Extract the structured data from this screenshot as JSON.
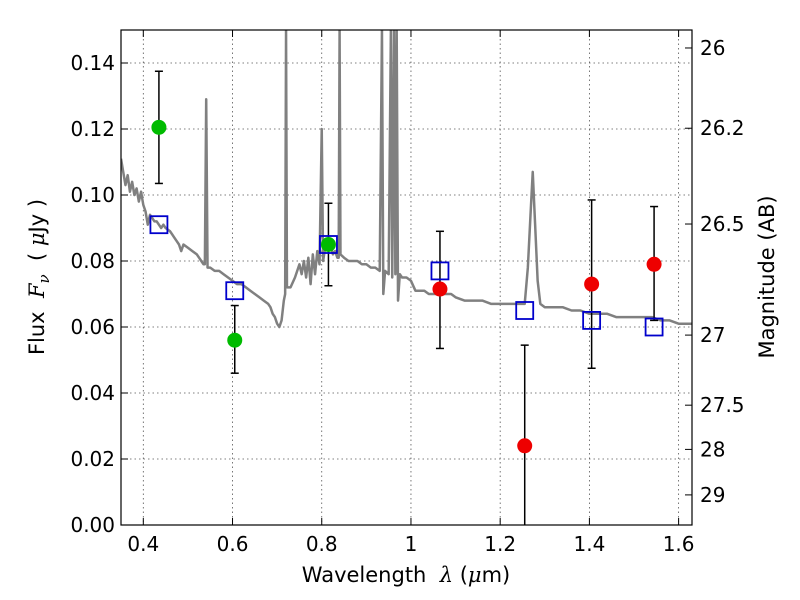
{
  "chart_data": {
    "type": "scatter",
    "title": "",
    "xlabel_parts": [
      "Wavelength  ",
      "λ",
      " (",
      "μ",
      "m)"
    ],
    "ylabel_parts": [
      "Flux  ",
      "F",
      "ν",
      "  ( ",
      "μ",
      "Jy )"
    ],
    "y2label": "Magnitude (AB)",
    "xlim": [
      0.35,
      1.63
    ],
    "ylim": [
      0.0,
      0.15
    ],
    "grid": true,
    "x_ticks": [
      {
        "v": 0.4,
        "label": "0.4"
      },
      {
        "v": 0.6,
        "label": "0.6"
      },
      {
        "v": 0.8,
        "label": "0.8"
      },
      {
        "v": 1.0,
        "label": "1"
      },
      {
        "v": 1.2,
        "label": "1.2"
      },
      {
        "v": 1.4,
        "label": "1.4"
      },
      {
        "v": 1.6,
        "label": "1.6"
      }
    ],
    "y_ticks": [
      {
        "v": 0.0,
        "label": "0.00"
      },
      {
        "v": 0.02,
        "label": "0.02"
      },
      {
        "v": 0.04,
        "label": "0.04"
      },
      {
        "v": 0.06,
        "label": "0.06"
      },
      {
        "v": 0.08,
        "label": "0.08"
      },
      {
        "v": 0.1,
        "label": "0.10"
      },
      {
        "v": 0.12,
        "label": "0.12"
      },
      {
        "v": 0.14,
        "label": "0.14"
      }
    ],
    "mag_ticks": [
      {
        "mag": 26,
        "label": "26"
      },
      {
        "mag": 26.2,
        "label": "26.2"
      },
      {
        "mag": 26.5,
        "label": "26.5"
      },
      {
        "mag": 27,
        "label": "27"
      },
      {
        "mag": 27.5,
        "label": "27.5"
      },
      {
        "mag": 28,
        "label": "28"
      },
      {
        "mag": 29,
        "label": "29"
      }
    ],
    "mag_zeropoint_uJy": 3631000000,
    "colors": {
      "model": "#808080",
      "observed_green": "#00bb00",
      "observed_red": "#ee0000",
      "model_phot": "#0000cc",
      "errorbar": "#000000",
      "grid": "#555555"
    },
    "series": [
      {
        "name": "model_spectrum",
        "kind": "line",
        "points": [
          [
            0.35,
            0.111
          ],
          [
            0.355,
            0.107
          ],
          [
            0.36,
            0.103
          ],
          [
            0.365,
            0.106
          ],
          [
            0.37,
            0.101
          ],
          [
            0.375,
            0.104
          ],
          [
            0.38,
            0.1
          ],
          [
            0.385,
            0.102
          ],
          [
            0.39,
            0.098
          ],
          [
            0.395,
            0.101
          ],
          [
            0.4,
            0.097
          ],
          [
            0.405,
            0.095
          ],
          [
            0.41,
            0.091
          ],
          [
            0.415,
            0.094
          ],
          [
            0.42,
            0.093
          ],
          [
            0.425,
            0.092
          ],
          [
            0.43,
            0.092
          ],
          [
            0.435,
            0.091
          ],
          [
            0.44,
            0.09
          ],
          [
            0.445,
            0.091
          ],
          [
            0.45,
            0.09
          ],
          [
            0.46,
            0.089
          ],
          [
            0.465,
            0.088
          ],
          [
            0.47,
            0.087
          ],
          [
            0.475,
            0.086
          ],
          [
            0.48,
            0.085
          ],
          [
            0.485,
            0.083
          ],
          [
            0.49,
            0.085
          ],
          [
            0.5,
            0.084
          ],
          [
            0.51,
            0.083
          ],
          [
            0.52,
            0.082
          ],
          [
            0.525,
            0.081
          ],
          [
            0.53,
            0.08
          ],
          [
            0.535,
            0.079
          ],
          [
            0.538,
            0.079
          ],
          [
            0.541,
            0.129
          ],
          [
            0.544,
            0.078
          ],
          [
            0.55,
            0.078
          ],
          [
            0.56,
            0.077
          ],
          [
            0.57,
            0.077
          ],
          [
            0.58,
            0.076
          ],
          [
            0.59,
            0.075
          ],
          [
            0.6,
            0.074
          ],
          [
            0.61,
            0.073
          ],
          [
            0.62,
            0.073
          ],
          [
            0.63,
            0.072
          ],
          [
            0.64,
            0.071
          ],
          [
            0.65,
            0.07
          ],
          [
            0.66,
            0.069
          ],
          [
            0.67,
            0.068
          ],
          [
            0.68,
            0.067
          ],
          [
            0.685,
            0.066
          ],
          [
            0.69,
            0.064
          ],
          [
            0.695,
            0.063
          ],
          [
            0.7,
            0.061
          ],
          [
            0.705,
            0.06
          ],
          [
            0.71,
            0.062
          ],
          [
            0.715,
            0.068
          ],
          [
            0.718,
            0.07
          ],
          [
            0.72,
            0.15
          ],
          [
            0.722,
            0.072
          ],
          [
            0.73,
            0.072
          ],
          [
            0.74,
            0.075
          ],
          [
            0.745,
            0.077
          ],
          [
            0.75,
            0.079
          ],
          [
            0.755,
            0.076
          ],
          [
            0.76,
            0.08
          ],
          [
            0.765,
            0.075
          ],
          [
            0.77,
            0.081
          ],
          [
            0.775,
            0.073
          ],
          [
            0.78,
            0.082
          ],
          [
            0.785,
            0.076
          ],
          [
            0.79,
            0.083
          ],
          [
            0.795,
            0.079
          ],
          [
            0.8,
            0.12
          ],
          [
            0.803,
            0.08
          ],
          [
            0.81,
            0.086
          ],
          [
            0.815,
            0.084
          ],
          [
            0.82,
            0.085
          ],
          [
            0.825,
            0.082
          ],
          [
            0.83,
            0.083
          ],
          [
            0.835,
            0.081
          ],
          [
            0.838,
            0.081
          ],
          [
            0.84,
            0.15
          ],
          [
            0.842,
            0.082
          ],
          [
            0.85,
            0.081
          ],
          [
            0.86,
            0.08
          ],
          [
            0.87,
            0.08
          ],
          [
            0.88,
            0.08
          ],
          [
            0.89,
            0.079
          ],
          [
            0.9,
            0.079
          ],
          [
            0.91,
            0.078
          ],
          [
            0.92,
            0.078
          ],
          [
            0.93,
            0.077
          ],
          [
            0.935,
            0.15
          ],
          [
            0.938,
            0.07
          ],
          [
            0.942,
            0.077
          ],
          [
            0.95,
            0.076
          ],
          [
            0.955,
            0.15
          ],
          [
            0.958,
            0.075
          ],
          [
            0.962,
            0.15
          ],
          [
            0.965,
            0.076
          ],
          [
            0.968,
            0.15
          ],
          [
            0.971,
            0.068
          ],
          [
            0.975,
            0.076
          ],
          [
            0.98,
            0.075
          ],
          [
            0.99,
            0.075
          ],
          [
            1.0,
            0.074
          ],
          [
            1.01,
            0.071
          ],
          [
            1.02,
            0.071
          ],
          [
            1.03,
            0.071
          ],
          [
            1.04,
            0.07
          ],
          [
            1.05,
            0.07
          ],
          [
            1.06,
            0.07
          ],
          [
            1.07,
            0.07
          ],
          [
            1.08,
            0.07
          ],
          [
            1.09,
            0.07
          ],
          [
            1.1,
            0.069
          ],
          [
            1.12,
            0.068
          ],
          [
            1.14,
            0.068
          ],
          [
            1.16,
            0.068
          ],
          [
            1.18,
            0.067
          ],
          [
            1.2,
            0.067
          ],
          [
            1.22,
            0.067
          ],
          [
            1.24,
            0.067
          ],
          [
            1.255,
            0.067
          ],
          [
            1.262,
            0.078
          ],
          [
            1.268,
            0.094
          ],
          [
            1.273,
            0.107
          ],
          [
            1.278,
            0.092
          ],
          [
            1.284,
            0.074
          ],
          [
            1.29,
            0.067
          ],
          [
            1.3,
            0.066
          ],
          [
            1.32,
            0.066
          ],
          [
            1.34,
            0.066
          ],
          [
            1.36,
            0.065
          ],
          [
            1.38,
            0.065
          ],
          [
            1.4,
            0.064
          ],
          [
            1.42,
            0.064
          ],
          [
            1.44,
            0.064
          ],
          [
            1.46,
            0.063
          ],
          [
            1.48,
            0.063
          ],
          [
            1.5,
            0.063
          ],
          [
            1.52,
            0.063
          ],
          [
            1.54,
            0.063
          ],
          [
            1.56,
            0.062
          ],
          [
            1.58,
            0.062
          ],
          [
            1.6,
            0.061
          ],
          [
            1.63,
            0.061
          ]
        ]
      },
      {
        "name": "model_photometry",
        "kind": "open_square",
        "points": [
          [
            0.435,
            0.091
          ],
          [
            0.605,
            0.071
          ],
          [
            0.815,
            0.085
          ],
          [
            1.065,
            0.077
          ],
          [
            1.255,
            0.065
          ],
          [
            1.405,
            0.062
          ],
          [
            1.545,
            0.06
          ]
        ]
      },
      {
        "name": "observed_optical",
        "kind": "filled_circle",
        "color": "green",
        "points": [
          {
            "x": 0.435,
            "y": 0.1205,
            "ylo": 0.1035,
            "yhi": 0.1375
          },
          {
            "x": 0.605,
            "y": 0.056,
            "ylo": 0.046,
            "yhi": 0.0665
          },
          {
            "x": 0.815,
            "y": 0.085,
            "ylo": 0.0725,
            "yhi": 0.0975
          }
        ]
      },
      {
        "name": "observed_nir",
        "kind": "filled_circle",
        "color": "red",
        "points": [
          {
            "x": 1.065,
            "y": 0.0715,
            "ylo": 0.0535,
            "yhi": 0.089
          },
          {
            "x": 1.255,
            "y": 0.024,
            "ylo": 0.0,
            "yhi": 0.0545
          },
          {
            "x": 1.405,
            "y": 0.073,
            "ylo": 0.0475,
            "yhi": 0.0985
          },
          {
            "x": 1.545,
            "y": 0.079,
            "ylo": 0.062,
            "yhi": 0.0965
          }
        ]
      }
    ]
  }
}
